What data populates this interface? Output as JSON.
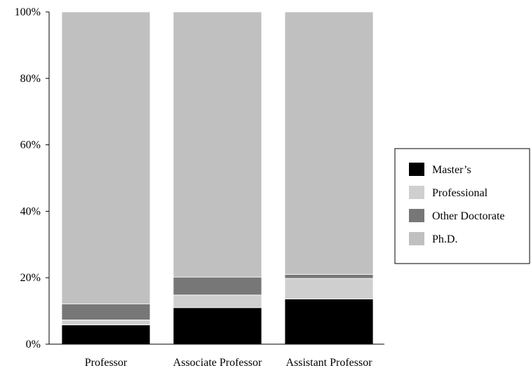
{
  "chart_data": {
    "type": "bar",
    "stacked": true,
    "title": "",
    "xlabel": "",
    "ylabel": "",
    "ylim": [
      0,
      100
    ],
    "y_ticks": [
      "0%",
      "20%",
      "40%",
      "60%",
      "80%",
      "100%"
    ],
    "categories": [
      "Professor",
      "Associate Professor",
      "Assistant Professor"
    ],
    "series": [
      {
        "name": "Master’s",
        "color": "#000000",
        "values": [
          5.8,
          11.0,
          13.6
        ]
      },
      {
        "name": "Professional",
        "color": "#cfcfcf",
        "values": [
          1.5,
          3.8,
          6.2
        ]
      },
      {
        "name": "Other Doctorate",
        "color": "#777777",
        "values": [
          4.8,
          5.4,
          1.2
        ]
      },
      {
        "name": "Ph.D.",
        "color": "#c0c0c0",
        "values": [
          87.9,
          79.8,
          79.0
        ]
      }
    ],
    "legend_position": "right",
    "grid": false
  }
}
